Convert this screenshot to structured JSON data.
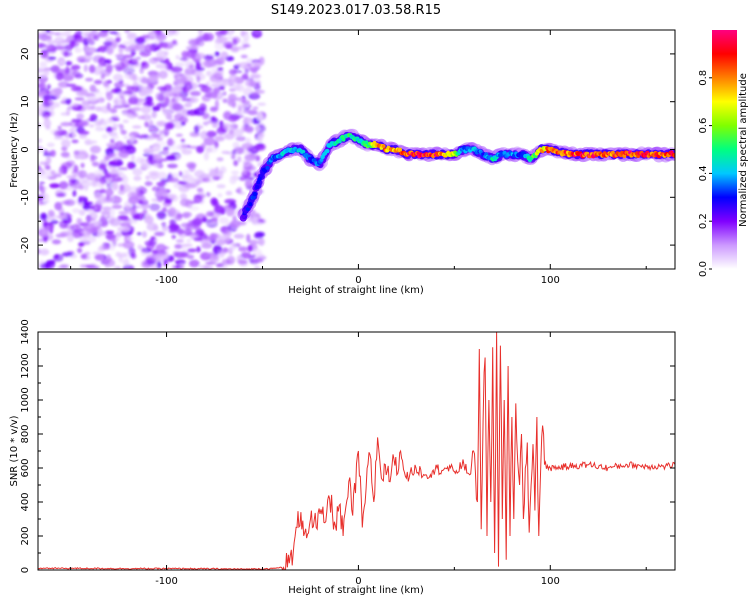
{
  "title": "S149.2023.017.03.58.R15",
  "chart_data": [
    {
      "type": "heatmap",
      "xlabel": "Height of straight line (km)",
      "ylabel": "Frequency (Hz)",
      "xlim": [
        -167,
        165
      ],
      "ylim": [
        -25,
        25
      ],
      "x_ticks": [
        -100,
        0,
        100
      ],
      "y_ticks": [
        -20,
        -10,
        0,
        10,
        20
      ],
      "colorbar": {
        "label": "Normalized spectral amplitude",
        "range": [
          0,
          1
        ],
        "ticks": [
          0.0,
          0.2,
          0.4,
          0.6,
          0.8
        ],
        "tick_labels": [
          "0.0",
          "0.2",
          "0.4",
          "0.6",
          "0.8"
        ],
        "colormap": [
          "#ffffff",
          "#cc99ff",
          "#8000ff",
          "#0000ff",
          "#00c8ff",
          "#00ff80",
          "#80ff00",
          "#ffff00",
          "#ff8000",
          "#ff0000",
          "#ff0080"
        ]
      },
      "noise_region": {
        "x": [
          -167,
          -50
        ],
        "amplitude": 0.12
      },
      "signal_track": {
        "x": [
          -60,
          -55,
          -50,
          -45,
          -40,
          -35,
          -30,
          -25,
          -20,
          -15,
          -10,
          -5,
          0,
          5,
          10,
          15,
          20,
          25,
          30,
          40,
          50,
          55,
          60,
          65,
          70,
          75,
          80,
          85,
          90,
          95,
          100,
          110,
          120,
          130,
          140,
          150,
          160,
          165
        ],
        "freq": [
          -14,
          -10,
          -5,
          -2,
          -1,
          0,
          0,
          -2,
          -3,
          1,
          2,
          3,
          2,
          1,
          1,
          0,
          0,
          -1,
          -1,
          -1,
          -1,
          0,
          0,
          -1,
          -2,
          -1,
          -1,
          -1,
          -2,
          0,
          0,
          -1,
          -1,
          -1,
          -1,
          -1,
          -1,
          -1
        ],
        "amplitude": [
          0.25,
          0.3,
          0.3,
          0.35,
          0.4,
          0.45,
          0.4,
          0.3,
          0.35,
          0.4,
          0.45,
          0.5,
          0.45,
          0.5,
          0.8,
          0.75,
          0.8,
          0.85,
          0.9,
          0.9,
          0.6,
          0.35,
          0.4,
          0.3,
          0.45,
          0.35,
          0.4,
          0.3,
          0.5,
          0.7,
          0.8,
          0.85,
          0.9,
          0.85,
          0.9,
          0.85,
          0.85,
          0.85
        ]
      }
    },
    {
      "type": "line",
      "xlabel": "Height of straight line (km)",
      "ylabel": "SNR (10 * v/v)",
      "xlim": [
        -167,
        165
      ],
      "ylim": [
        0,
        1400
      ],
      "x_ticks": [
        -100,
        0,
        100
      ],
      "y_ticks": [
        0,
        200,
        400,
        600,
        800,
        1000,
        1200,
        1400
      ],
      "color": "#e8302c",
      "series": [
        {
          "x": [
            -167,
            -150,
            -120,
            -90,
            -60,
            -45,
            -40,
            -36,
            -34,
            -32,
            -30,
            -28,
            -25,
            -22,
            -20,
            -18,
            -15,
            -12,
            -10,
            -8,
            -5,
            -3,
            0,
            2,
            4,
            6,
            8,
            10,
            12,
            14,
            16,
            18,
            20,
            22,
            25,
            30,
            35,
            40,
            45,
            50,
            55,
            58,
            60,
            62,
            63,
            64,
            65,
            66,
            67,
            68,
            69,
            70,
            71,
            72,
            73,
            74,
            75,
            76,
            77,
            78,
            79,
            80,
            81,
            82,
            83,
            84,
            85,
            86,
            87,
            88,
            89,
            90,
            91,
            92,
            93,
            94,
            95,
            96,
            97,
            100,
            110,
            120,
            130,
            140,
            150,
            160,
            165
          ],
          "y": [
            10,
            10,
            8,
            8,
            5,
            8,
            15,
            40,
            100,
            250,
            340,
            220,
            300,
            250,
            330,
            280,
            420,
            260,
            380,
            200,
            520,
            320,
            700,
            250,
            480,
            680,
            400,
            780,
            540,
            620,
            520,
            680,
            560,
            700,
            540,
            600,
            560,
            590,
            600,
            580,
            620,
            560,
            700,
            400,
            1300,
            240,
            880,
            1250,
            200,
            1000,
            400,
            1310,
            100,
            1400,
            20,
            1320,
            300,
            1000,
            60,
            1200,
            200,
            900,
            300,
            980,
            640,
            500,
            800,
            300,
            600,
            750,
            220,
            500,
            740,
            350,
            900,
            200,
            600,
            850,
            620,
            600,
            610,
            620,
            600,
            620,
            610,
            610,
            620
          ]
        }
      ]
    }
  ]
}
